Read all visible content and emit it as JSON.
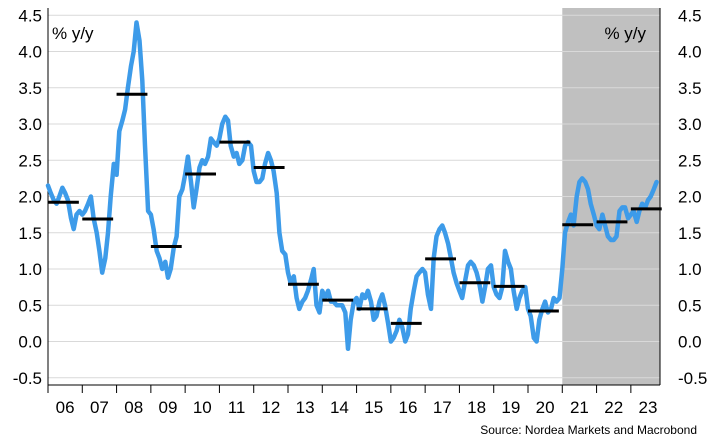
{
  "chart_data": {
    "type": "line",
    "title": "",
    "ylabel_left": "% y/y",
    "ylabel_right": "% y/y",
    "source": "Source: Nordea Markets and Macrobond",
    "ylim": [
      -0.6,
      4.6
    ],
    "yticks": [
      -0.5,
      0.0,
      0.5,
      1.0,
      1.5,
      2.0,
      2.5,
      3.0,
      3.5,
      4.0,
      4.5
    ],
    "ytick_labels": [
      "-0.5",
      "0.0",
      "0.5",
      "1.0",
      "1.5",
      "2.0",
      "2.5",
      "3.0",
      "3.5",
      "4.0",
      "4.5"
    ],
    "xlim": [
      2006.0,
      2023.85
    ],
    "xticks": [
      {
        "label": "06",
        "year": 2006
      },
      {
        "label": "07",
        "year": 2007
      },
      {
        "label": "08",
        "year": 2008
      },
      {
        "label": "09",
        "year": 2009
      },
      {
        "label": "10",
        "year": 2010
      },
      {
        "label": "11",
        "year": 2011
      },
      {
        "label": "12",
        "year": 2012
      },
      {
        "label": "13",
        "year": 2013
      },
      {
        "label": "14",
        "year": 2014
      },
      {
        "label": "15",
        "year": 2015
      },
      {
        "label": "16",
        "year": 2016
      },
      {
        "label": "17",
        "year": 2017
      },
      {
        "label": "18",
        "year": 2018
      },
      {
        "label": "19",
        "year": 2019
      },
      {
        "label": "20",
        "year": 2020
      },
      {
        "label": "21",
        "year": 2021
      },
      {
        "label": "22",
        "year": 2022
      },
      {
        "label": "23",
        "year": 2023
      }
    ],
    "shaded_region": {
      "x0": 2021.0,
      "x1": 2023.85,
      "color": "#c0c0c0"
    },
    "grid": true,
    "series": [
      {
        "color": "#3d9be9",
        "x": [
          2006.0,
          2006.08,
          2006.17,
          2006.25,
          2006.33,
          2006.42,
          2006.5,
          2006.58,
          2006.67,
          2006.75,
          2006.83,
          2006.92,
          2007.0,
          2007.08,
          2007.17,
          2007.25,
          2007.33,
          2007.42,
          2007.5,
          2007.58,
          2007.67,
          2007.75,
          2007.83,
          2007.92,
          2008.0,
          2008.08,
          2008.17,
          2008.25,
          2008.33,
          2008.42,
          2008.5,
          2008.58,
          2008.67,
          2008.75,
          2008.83,
          2008.92,
          2009.0,
          2009.08,
          2009.17,
          2009.25,
          2009.33,
          2009.42,
          2009.5,
          2009.58,
          2009.67,
          2009.75,
          2009.83,
          2009.92,
          2010.0,
          2010.08,
          2010.17,
          2010.25,
          2010.33,
          2010.42,
          2010.5,
          2010.58,
          2010.67,
          2010.75,
          2010.83,
          2010.92,
          2011.0,
          2011.08,
          2011.17,
          2011.25,
          2011.33,
          2011.42,
          2011.5,
          2011.58,
          2011.67,
          2011.75,
          2011.83,
          2011.92,
          2012.0,
          2012.08,
          2012.17,
          2012.25,
          2012.33,
          2012.42,
          2012.5,
          2012.58,
          2012.67,
          2012.75,
          2012.83,
          2012.92,
          2013.0,
          2013.08,
          2013.17,
          2013.25,
          2013.33,
          2013.42,
          2013.5,
          2013.58,
          2013.67,
          2013.75,
          2013.83,
          2013.92,
          2014.0,
          2014.08,
          2014.17,
          2014.25,
          2014.33,
          2014.42,
          2014.5,
          2014.58,
          2014.67,
          2014.75,
          2014.83,
          2014.92,
          2015.0,
          2015.08,
          2015.17,
          2015.25,
          2015.33,
          2015.42,
          2015.5,
          2015.58,
          2015.67,
          2015.75,
          2015.83,
          2015.92,
          2016.0,
          2016.08,
          2016.17,
          2016.25,
          2016.33,
          2016.42,
          2016.5,
          2016.58,
          2016.67,
          2016.75,
          2016.83,
          2016.92,
          2017.0,
          2017.08,
          2017.17,
          2017.25,
          2017.33,
          2017.42,
          2017.5,
          2017.58,
          2017.67,
          2017.75,
          2017.83,
          2017.92,
          2018.0,
          2018.08,
          2018.17,
          2018.25,
          2018.33,
          2018.42,
          2018.5,
          2018.58,
          2018.67,
          2018.75,
          2018.83,
          2018.92,
          2019.0,
          2019.08,
          2019.17,
          2019.25,
          2019.33,
          2019.42,
          2019.5,
          2019.58,
          2019.67,
          2019.75,
          2019.83,
          2019.92,
          2020.0,
          2020.08,
          2020.17,
          2020.25,
          2020.33,
          2020.42,
          2020.5,
          2020.58,
          2020.67,
          2020.75,
          2020.83,
          2020.92,
          2021.0,
          2021.08,
          2021.17,
          2021.25,
          2021.33,
          2021.42,
          2021.5,
          2021.58,
          2021.67,
          2021.75,
          2021.83,
          2021.92,
          2022.0,
          2022.08,
          2022.17,
          2022.25,
          2022.33,
          2022.42,
          2022.5,
          2022.58,
          2022.67,
          2022.75,
          2022.83,
          2022.92,
          2023.0,
          2023.08,
          2023.17,
          2023.25,
          2023.33,
          2023.42,
          2023.5,
          2023.58,
          2023.67,
          2023.75
        ],
        "y": [
          2.15,
          2.05,
          1.95,
          1.9,
          2.0,
          2.12,
          2.05,
          1.95,
          1.7,
          1.55,
          1.75,
          1.8,
          1.75,
          1.8,
          1.9,
          2.0,
          1.7,
          1.5,
          1.25,
          0.95,
          1.15,
          1.5,
          2.0,
          2.45,
          2.3,
          2.9,
          3.05,
          3.2,
          3.5,
          3.8,
          4.0,
          4.4,
          4.15,
          3.6,
          2.7,
          1.8,
          1.75,
          1.55,
          1.25,
          1.15,
          1.0,
          1.1,
          0.88,
          1.0,
          1.3,
          1.45,
          2.0,
          2.1,
          2.3,
          2.55,
          2.2,
          1.85,
          2.1,
          2.4,
          2.5,
          2.45,
          2.55,
          2.8,
          2.75,
          2.7,
          2.8,
          3.0,
          3.1,
          3.05,
          2.7,
          2.55,
          2.6,
          2.45,
          2.5,
          2.7,
          2.75,
          2.7,
          2.35,
          2.2,
          2.2,
          2.25,
          2.45,
          2.6,
          2.5,
          2.35,
          2.05,
          1.5,
          1.25,
          1.2,
          0.95,
          0.8,
          0.9,
          0.6,
          0.45,
          0.55,
          0.6,
          0.7,
          0.85,
          1.0,
          0.5,
          0.4,
          0.7,
          0.6,
          0.7,
          0.55,
          0.55,
          0.5,
          0.5,
          0.5,
          0.4,
          -0.1,
          0.3,
          0.55,
          0.6,
          0.45,
          0.65,
          0.6,
          0.7,
          0.55,
          0.3,
          0.35,
          0.55,
          0.65,
          0.5,
          0.25,
          0.0,
          0.05,
          0.15,
          0.3,
          0.2,
          0.0,
          0.1,
          0.45,
          0.7,
          0.9,
          0.95,
          1.0,
          0.95,
          0.65,
          0.45,
          1.15,
          1.45,
          1.55,
          1.6,
          1.5,
          1.35,
          1.15,
          0.95,
          0.8,
          0.7,
          0.6,
          0.85,
          1.05,
          1.1,
          1.05,
          0.95,
          0.8,
          0.55,
          0.75,
          1.0,
          1.05,
          0.75,
          0.65,
          0.6,
          0.75,
          1.25,
          1.1,
          1.0,
          0.7,
          0.45,
          0.6,
          0.7,
          0.75,
          0.45,
          0.35,
          0.05,
          0.0,
          0.3,
          0.45,
          0.55,
          0.4,
          0.45,
          0.6,
          0.55,
          0.6,
          1.0,
          1.5,
          1.65,
          1.75,
          1.6,
          2.0,
          2.2,
          2.25,
          2.2,
          2.1,
          1.9,
          1.75,
          1.6,
          1.55,
          1.75,
          1.6,
          1.45,
          1.4,
          1.4,
          1.45,
          1.8,
          1.85,
          1.85,
          1.7,
          1.75,
          1.8,
          1.65,
          1.8,
          1.9,
          1.85,
          1.95,
          2.0,
          2.1,
          2.2
        ]
      }
    ],
    "period_averages": [
      {
        "x0": 2006.0,
        "x1": 2006.9,
        "value": 1.92
      },
      {
        "x0": 2007.0,
        "x1": 2007.9,
        "value": 1.69
      },
      {
        "x0": 2008.0,
        "x1": 2008.9,
        "value": 3.41
      },
      {
        "x0": 2009.0,
        "x1": 2009.9,
        "value": 1.31
      },
      {
        "x0": 2010.0,
        "x1": 2010.9,
        "value": 2.31
      },
      {
        "x0": 2011.0,
        "x1": 2011.9,
        "value": 2.75
      },
      {
        "x0": 2012.0,
        "x1": 2012.9,
        "value": 2.4
      },
      {
        "x0": 2013.0,
        "x1": 2013.9,
        "value": 0.79
      },
      {
        "x0": 2014.0,
        "x1": 2014.9,
        "value": 0.57
      },
      {
        "x0": 2015.0,
        "x1": 2015.9,
        "value": 0.45
      },
      {
        "x0": 2016.0,
        "x1": 2016.9,
        "value": 0.25
      },
      {
        "x0": 2017.0,
        "x1": 2017.9,
        "value": 1.14
      },
      {
        "x0": 2018.0,
        "x1": 2018.9,
        "value": 0.81
      },
      {
        "x0": 2019.0,
        "x1": 2019.9,
        "value": 0.76
      },
      {
        "x0": 2020.0,
        "x1": 2020.9,
        "value": 0.42
      },
      {
        "x0": 2021.0,
        "x1": 2021.9,
        "value": 1.61
      },
      {
        "x0": 2022.0,
        "x1": 2022.9,
        "value": 1.65
      },
      {
        "x0": 2023.0,
        "x1": 2023.9,
        "value": 1.83
      }
    ]
  }
}
